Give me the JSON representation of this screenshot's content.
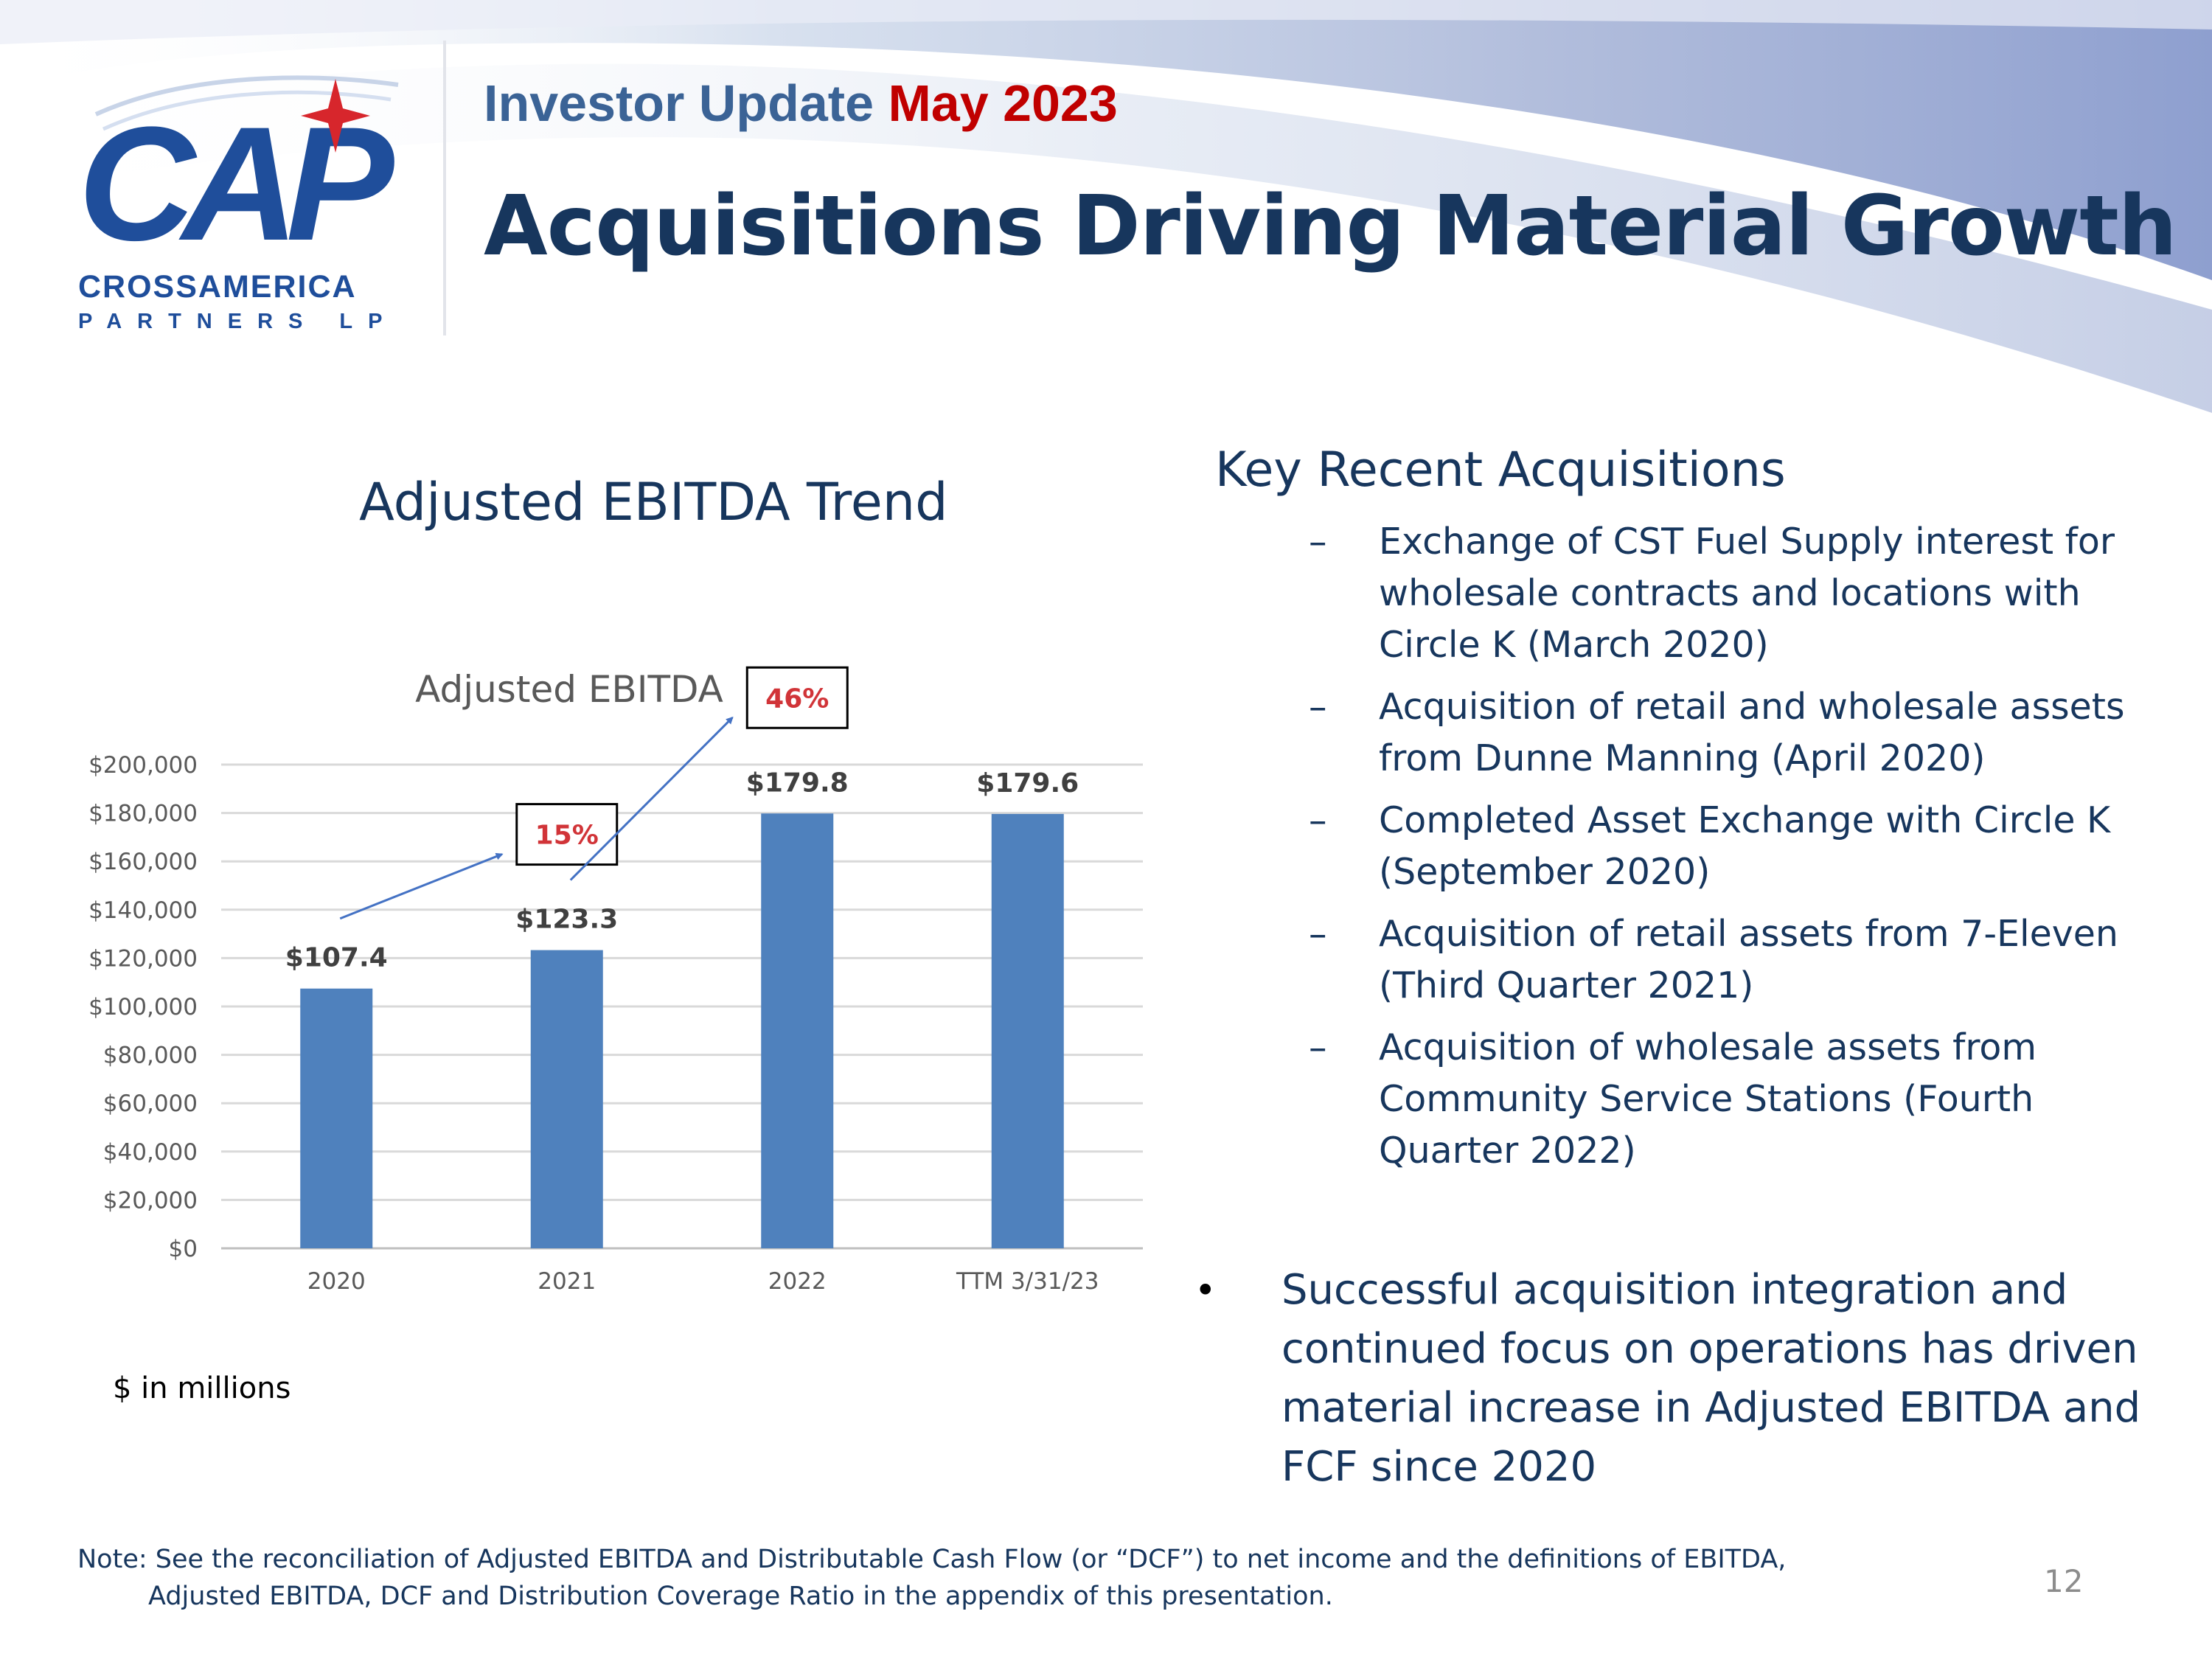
{
  "header": {
    "update_prefix": "Investor Update",
    "update_date": "May 2023",
    "title": "Acquisitions Driving Material Growth"
  },
  "logo": {
    "mark": "CAP",
    "name": "CROSSAMERICA",
    "sub": "PARTNERS LP",
    "colors": {
      "blue": "#1f4e9b",
      "red": "#d7262c"
    }
  },
  "chart_section": {
    "heading": "Adjusted EBITDA Trend",
    "units_note": "$ in millions"
  },
  "chart_data": {
    "type": "bar",
    "title": "Adjusted EBITDA",
    "categories": [
      "2020",
      "2021",
      "2022",
      "TTM 3/31/23"
    ],
    "values": [
      107400,
      123300,
      179800,
      179600
    ],
    "data_labels": [
      "$107.4",
      "$123.3",
      "$179.8",
      "$179.6"
    ],
    "ylim": [
      0,
      200000
    ],
    "yticks": [
      0,
      20000,
      40000,
      60000,
      80000,
      100000,
      120000,
      140000,
      160000,
      180000,
      200000
    ],
    "ytick_labels": [
      "$0",
      "$20,000",
      "$40,000",
      "$60,000",
      "$80,000",
      "$100,000",
      "$120,000",
      "$140,000",
      "$160,000",
      "$180,000",
      "$200,000"
    ],
    "xlabel": "",
    "ylabel": "",
    "grid": true,
    "bar_color": "#4f81bd",
    "growth_annotations": [
      {
        "label": "15%",
        "from_index": 0,
        "to_index": 1
      },
      {
        "label": "46%",
        "from_index": 1,
        "to_index": 2
      }
    ]
  },
  "acquisitions": {
    "heading": "Key Recent Acquisitions",
    "dash": "–",
    "items": [
      "Exchange of CST Fuel Supply interest for wholesale contracts and locations with Circle K (March 2020)",
      "Acquisition of retail and wholesale assets from Dunne Manning (April 2020)",
      "Completed Asset Exchange with Circle K (September 2020)",
      "Acquisition of retail assets from 7-Eleven (Third Quarter 2021)",
      "Acquisition of wholesale assets from Community Service Stations (Fourth Quarter 2022)"
    ]
  },
  "callout": {
    "bullet": "•",
    "text": "Successful acquisition integration and continued focus on operations has driven material increase in Adjusted EBITDA and FCF since 2020"
  },
  "footnote": {
    "line1": "Note: See the reconciliation of Adjusted EBITDA and Distributable Cash Flow (or “DCF”) to net income and the definitions of EBITDA,",
    "line2": "Adjusted EBITDA, DCF and Distribution Coverage Ratio in the appendix of this presentation."
  },
  "page_number": "12"
}
